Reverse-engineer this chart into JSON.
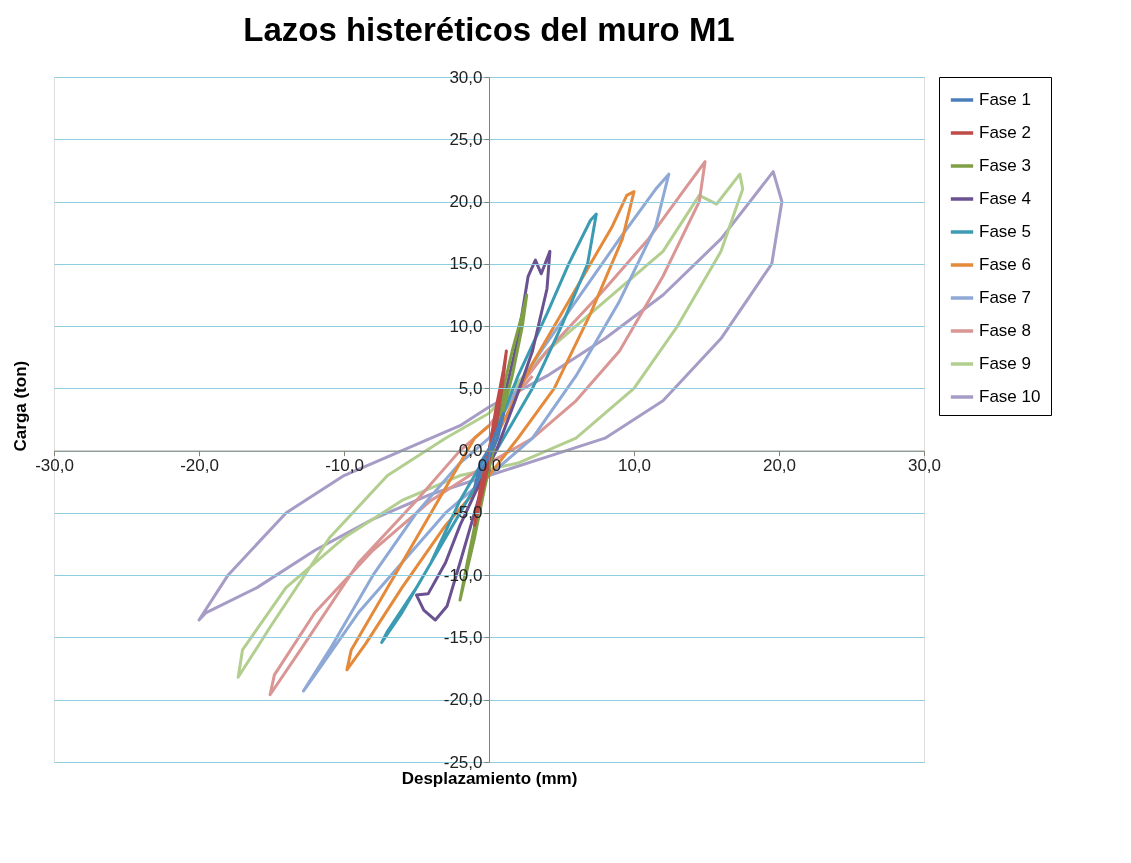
{
  "chart_data": {
    "type": "line",
    "title": "Lazos histeréticos del muro M1",
    "xlabel": "Desplazamiento (mm)",
    "ylabel": "Carga (ton)",
    "xlim": [
      -30,
      30
    ],
    "ylim": [
      -25,
      30
    ],
    "xticks": [
      {
        "value": -30,
        "label": "-30,0"
      },
      {
        "value": -20,
        "label": "-20,0"
      },
      {
        "value": -10,
        "label": "-10,0"
      },
      {
        "value": 0,
        "label": "0,0"
      },
      {
        "value": 10,
        "label": "10,0"
      },
      {
        "value": 20,
        "label": "20,0"
      },
      {
        "value": 30,
        "label": "30,0"
      }
    ],
    "yticks": [
      {
        "value": -25,
        "label": "-25,0"
      },
      {
        "value": -20,
        "label": "-20,0"
      },
      {
        "value": -15,
        "label": "-15,0"
      },
      {
        "value": -10,
        "label": "-10,0"
      },
      {
        "value": -5,
        "label": "-5,0"
      },
      {
        "value": 0,
        "label": "0,0"
      },
      {
        "value": 5,
        "label": "5,0"
      },
      {
        "value": 10,
        "label": "10,0"
      },
      {
        "value": 15,
        "label": "15,0"
      },
      {
        "value": 20,
        "label": "20,0"
      },
      {
        "value": 25,
        "label": "25,0"
      },
      {
        "value": 30,
        "label": "30,0"
      }
    ],
    "grid": "y",
    "legend": "right",
    "series": [
      {
        "name": "Fase 1",
        "color": "#4a7ebb",
        "x": [
          0,
          0.5,
          1.0,
          0.6,
          0,
          -0.5,
          -1.0,
          -0.6,
          0.2
        ],
        "values": [
          0,
          1.5,
          3,
          1,
          -0.5,
          -1.5,
          -3,
          -1,
          0.5
        ]
      },
      {
        "name": "Fase 2",
        "color": "#be4b48",
        "x": [
          0,
          0.5,
          1.0,
          1.2,
          0.9,
          0.4,
          -0.2,
          -0.7,
          -1.0,
          -0.6,
          0,
          0.3
        ],
        "values": [
          0,
          3.5,
          6.5,
          8,
          5,
          1.5,
          -2,
          -4.5,
          -6,
          -3,
          0,
          1.5
        ]
      },
      {
        "name": "Fase 3",
        "color": "#7f9f44",
        "x": [
          0,
          0.8,
          1.6,
          2.3,
          2.6,
          2.3,
          1.6,
          0.8,
          0,
          -0.8,
          -1.5,
          -2.0,
          -1.8,
          -1.0,
          -0.3,
          0.5,
          1.2
        ],
        "values": [
          0,
          4,
          8,
          11,
          12.5,
          10,
          6,
          2.5,
          -1,
          -5,
          -9,
          -12,
          -11,
          -7,
          -3,
          1,
          5
        ]
      },
      {
        "name": "Fase 4",
        "color": "#6a5190",
        "x": [
          0,
          1,
          2,
          2.7,
          3.2,
          3.6,
          4.2,
          4.0,
          3.0,
          1.8,
          0.5,
          -0.8,
          -2,
          -3,
          -4.2,
          -5.0,
          -4.5,
          -3.7,
          -2.9,
          -2,
          -1,
          0,
          1
        ],
        "values": [
          0,
          4,
          9,
          14,
          15.3,
          14.2,
          16,
          13,
          8,
          4,
          0,
          -3,
          -6,
          -9,
          -11.5,
          -11.6,
          -12.8,
          -13.6,
          -12.5,
          -9,
          -5,
          -1,
          3
        ]
      },
      {
        "name": "Fase 5",
        "color": "#3b9bb2",
        "x": [
          0,
          2,
          4,
          5.5,
          7,
          7.4,
          6.8,
          5,
          3,
          1,
          -1,
          -3,
          -5,
          -7,
          -7.4,
          -6,
          -4,
          -2,
          0,
          1
        ],
        "values": [
          0,
          6,
          11,
          15,
          18.5,
          19,
          15,
          10,
          5,
          1,
          -3,
          -7,
          -11,
          -14.5,
          -15.4,
          -13,
          -9,
          -4,
          0,
          3
        ]
      },
      {
        "name": "Fase 6",
        "color": "#e48a3a",
        "x": [
          0,
          3,
          6,
          8.5,
          9.5,
          10,
          9.2,
          7,
          4.5,
          2,
          0,
          -3,
          -6,
          -8.5,
          -9.8,
          -9.5,
          -7,
          -4,
          -1,
          0
        ],
        "values": [
          0,
          7,
          13,
          18,
          20.5,
          20.8,
          17,
          11,
          5,
          1,
          -2,
          -6,
          -11,
          -15.5,
          -17.6,
          -16,
          -11,
          -5,
          1,
          2
        ]
      },
      {
        "name": "Fase 7",
        "color": "#8fa9d6",
        "x": [
          0,
          3,
          6,
          9,
          11.5,
          12.4,
          11.5,
          9,
          6,
          3,
          0,
          -3,
          -6,
          -9,
          -12,
          -12.8,
          -11,
          -8,
          -5,
          -2,
          0,
          2
        ],
        "values": [
          1,
          7,
          12,
          17,
          21,
          22.2,
          18,
          12,
          6,
          1,
          -2,
          -5,
          -9,
          -13,
          -18,
          -19.3,
          -16,
          -10,
          -5,
          -1,
          1,
          5
        ]
      },
      {
        "name": "Fase 8",
        "color": "#d99694",
        "x": [
          0,
          4,
          8,
          11,
          13.5,
          14.9,
          14.5,
          12,
          9,
          6,
          3,
          0,
          -4,
          -8,
          -12,
          -14.8,
          -15.1,
          -13,
          -9,
          -5,
          -2,
          0,
          3
        ],
        "values": [
          2,
          8,
          13,
          17,
          21,
          23.2,
          20,
          14,
          8,
          4,
          1,
          -1,
          -4,
          -8,
          -13,
          -18,
          -19.6,
          -16,
          -9,
          -4,
          0,
          2,
          6
        ]
      },
      {
        "name": "Fase 9",
        "color": "#b3cf8f",
        "x": [
          0,
          4,
          8,
          12,
          14.5,
          15.7,
          17.3,
          17.5,
          16,
          13,
          10,
          6,
          2,
          -2,
          -6,
          -10,
          -14,
          -17,
          -17.3,
          -15,
          -11,
          -7,
          -3,
          0,
          3
        ],
        "values": [
          3,
          8,
          12,
          16,
          20.5,
          19.8,
          22.2,
          21,
          16,
          10,
          5,
          1,
          -1,
          -2,
          -4,
          -7,
          -11,
          -16,
          -18.2,
          -14,
          -7,
          -2,
          1,
          3,
          6.5
        ]
      },
      {
        "name": "Fase 10",
        "color": "#a69cc6",
        "x": [
          0,
          4,
          8,
          12,
          16,
          19.6,
          20.2,
          19.5,
          16,
          12,
          8,
          4,
          0,
          -4,
          -8,
          -12,
          -16,
          -19.5,
          -20,
          -18,
          -14,
          -10,
          -6,
          -2,
          0,
          4
        ],
        "values": [
          3.5,
          6,
          9,
          12.5,
          17,
          22.4,
          20,
          15,
          9,
          4,
          1,
          -0.5,
          -2,
          -3.5,
          -5.5,
          -8,
          -11,
          -13,
          -13.6,
          -10,
          -5,
          -2,
          0,
          2,
          3.5,
          6
        ]
      }
    ]
  }
}
